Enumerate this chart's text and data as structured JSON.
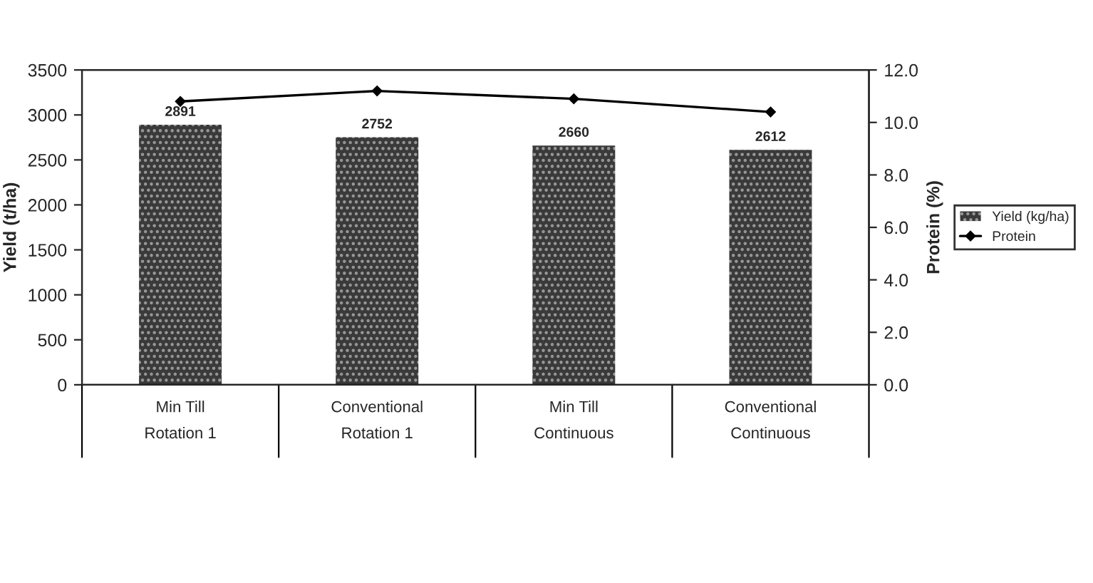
{
  "chart_data": {
    "type": "bar",
    "categories": [
      "Min Till\nRotation 1",
      "Conventional\nRotation 1",
      "Min Till\nContinuous",
      "Conventional\nContinuous"
    ],
    "series": [
      {
        "name": "Yield (kg/ha)",
        "color": "#3a3a3a",
        "values": [
          2891,
          2752,
          2660,
          2612
        ],
        "value_labels": [
          "2891",
          "2752",
          "2660",
          "2612"
        ]
      },
      {
        "name": "Protein",
        "type": "line",
        "axis": "y2",
        "color": "#000000",
        "values": [
          10.8,
          11.2,
          10.9,
          10.4
        ]
      }
    ],
    "ylabel": "Yield (t/ha)",
    "y2label": "Protein (%)",
    "ylim": [
      0,
      3500
    ],
    "yticks": [
      0,
      500,
      1000,
      1500,
      2000,
      2500,
      3000,
      3500
    ],
    "y2lim": [
      0,
      12
    ],
    "y2ticks": [
      {
        "value": 0,
        "label": "0.0"
      },
      {
        "value": 2,
        "label": "2.0"
      },
      {
        "value": 4,
        "label": "4.0"
      },
      {
        "value": 6,
        "label": "6.0"
      },
      {
        "value": 8,
        "label": "8.0"
      },
      {
        "value": 10,
        "label": "10.0"
      },
      {
        "value": 12,
        "label": "12.0"
      }
    ],
    "marker": "diamond",
    "line_style": "solid",
    "legend": "right",
    "grid": false
  }
}
